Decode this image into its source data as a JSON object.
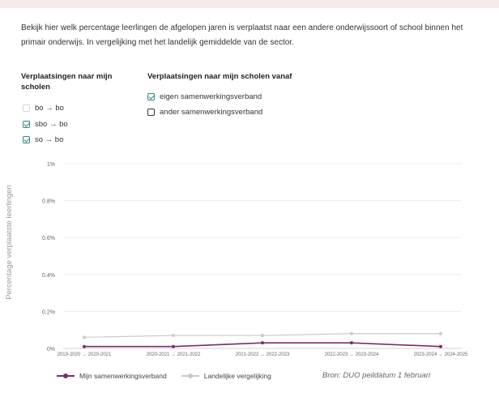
{
  "intro_text": "Bekijk hier welk percentage leerlingen de afgelopen jaren is verplaatst naar een andere onderwijssoort of school binnen het primair onderwijs. In vergelijking met het landelijk gemiddelde van de sector.",
  "filters": {
    "group1_title": "Verplaatsingen naar mijn scholen",
    "group1_options": [
      {
        "label": "bo → bo",
        "checked": false
      },
      {
        "label": "sbo → bo",
        "checked": true
      },
      {
        "label": "so → bo",
        "checked": true
      }
    ],
    "group2_title": "Verplaatsingen naar mijn scholen vanaf",
    "group2_options": [
      {
        "label": "eigen samenwerkingsverband",
        "checked": true
      },
      {
        "label": "ander samenwerkingsverband",
        "checked": false
      }
    ]
  },
  "colors": {
    "accent": "#2d8a86",
    "series1": "#7b2d67",
    "series2": "#c9c9c9",
    "grid": "#ececec"
  },
  "chart_data": {
    "type": "line",
    "title": "",
    "xlabel": "",
    "ylabel": "Percentage verplaatste leerlingen",
    "categories": [
      "2019-2020 → 2020-2021",
      "2020-2021 → 2021-2022",
      "2021-2022 → 2022-2023",
      "2022-2023 → 2023-2024",
      "2023-2024 → 2024-2025"
    ],
    "y_ticks": [
      "0%",
      "0.2%",
      "0.4%",
      "0.6%",
      "0.8%",
      "1%"
    ],
    "ylim": [
      0,
      1
    ],
    "grid": true,
    "legend_position": "bottom-left",
    "series": [
      {
        "name": "Mijn samenwerkingsverband",
        "values": [
          0.01,
          0.01,
          0.03,
          0.03,
          0.01
        ]
      },
      {
        "name": "Landelijke vergelijking",
        "values": [
          0.06,
          0.07,
          0.07,
          0.08,
          0.08
        ]
      }
    ]
  },
  "source": "Bron: DUO peildatum 1 februari"
}
